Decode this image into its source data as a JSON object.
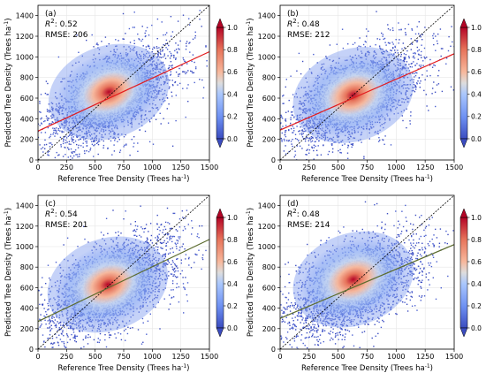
{
  "chart_data": [
    {
      "type": "scatter",
      "panel_label": "(a)",
      "r2_label": "R",
      "r2_sup": "2",
      "r2_value": ": 0.52",
      "rmse_text": "RMSE: 206",
      "xlabel": "Reference Tree Density (Trees ha",
      "ylabel": "Predicted Tree Density (Trees ha",
      "unit_sup": "-1",
      "unit_close": ")",
      "xlim": [
        0,
        1500
      ],
      "ylim": [
        0,
        1500
      ],
      "xticks": [
        0,
        250,
        500,
        750,
        1000,
        1250,
        1500
      ],
      "yticks": [
        0,
        200,
        400,
        600,
        800,
        1000,
        1200,
        1400
      ],
      "one_to_one_line": [
        [
          0,
          0
        ],
        [
          1500,
          1500
        ]
      ],
      "fit_line": [
        [
          0,
          280
        ],
        [
          1500,
          1050
        ]
      ],
      "fit_color": "#e31a1c",
      "density_peak": [
        620,
        660
      ],
      "colorbar": {
        "ticks": [
          0.0,
          0.2,
          0.4,
          0.6,
          0.8,
          1.0
        ],
        "tick_labels": [
          "0.0",
          "0.2",
          "0.4",
          "0.6",
          "0.8",
          "1.0"
        ],
        "colormap": "coolwarm",
        "extend": "both"
      }
    },
    {
      "type": "scatter",
      "panel_label": "(b)",
      "r2_label": "R",
      "r2_sup": "2",
      "r2_value": ": 0.48",
      "rmse_text": "RMSE: 212",
      "xlabel": "Reference Tree Density (Trees ha",
      "ylabel": "Predicted Tree Density (Trees ha",
      "unit_sup": "-1",
      "unit_close": ")",
      "xlim": [
        0,
        1500
      ],
      "ylim": [
        0,
        1500
      ],
      "xticks": [
        0,
        250,
        500,
        750,
        1000,
        1250,
        1500
      ],
      "yticks": [
        0,
        200,
        400,
        600,
        800,
        1000,
        1200,
        1400
      ],
      "one_to_one_line": [
        [
          0,
          0
        ],
        [
          1500,
          1500
        ]
      ],
      "fit_line": [
        [
          0,
          290
        ],
        [
          1500,
          1030
        ]
      ],
      "fit_color": "#e31a1c",
      "density_peak": [
        630,
        630
      ],
      "colorbar": {
        "ticks": [
          0.0,
          0.2,
          0.4,
          0.6,
          0.8,
          1.0
        ],
        "tick_labels": [
          "0.0",
          "0.2",
          "0.4",
          "0.6",
          "0.8",
          "1.0"
        ],
        "colormap": "coolwarm",
        "extend": "both"
      }
    },
    {
      "type": "scatter",
      "panel_label": "(c)",
      "r2_label": "R",
      "r2_sup": "2",
      "r2_value": ": 0.54",
      "rmse_text": "RMSE: 201",
      "xlabel": "Reference Tree Density (Trees ha",
      "ylabel": "Predicted Tree Density (Trees ha",
      "unit_sup": "-1",
      "unit_close": ")",
      "xlim": [
        0,
        1500
      ],
      "ylim": [
        0,
        1500
      ],
      "xticks": [
        0,
        250,
        500,
        750,
        1000,
        1250,
        1500
      ],
      "yticks": [
        0,
        200,
        400,
        600,
        800,
        1000,
        1200,
        1400
      ],
      "one_to_one_line": [
        [
          0,
          0
        ],
        [
          1500,
          1500
        ]
      ],
      "fit_line": [
        [
          0,
          270
        ],
        [
          1500,
          1070
        ]
      ],
      "fit_color": "#5b6b2d",
      "density_peak": [
        610,
        630
      ],
      "colorbar": {
        "ticks": [
          0.0,
          0.2,
          0.4,
          0.6,
          0.8,
          1.0
        ],
        "tick_labels": [
          "0.0",
          "0.2",
          "0.4",
          "0.6",
          "0.8",
          "1.0"
        ],
        "colormap": "coolwarm",
        "extend": "both"
      }
    },
    {
      "type": "scatter",
      "panel_label": "(d)",
      "r2_label": "R",
      "r2_sup": "2",
      "r2_value": ": 0.48",
      "rmse_text": "RMSE: 214",
      "xlabel": "Reference Tree Density (Trees ha",
      "ylabel": "Predicted Tree Density (Trees ha",
      "unit_sup": "-1",
      "unit_close": ")",
      "xlim": [
        0,
        1500
      ],
      "ylim": [
        0,
        1500
      ],
      "xticks": [
        0,
        250,
        500,
        750,
        1000,
        1250,
        1500
      ],
      "yticks": [
        0,
        200,
        400,
        600,
        800,
        1000,
        1200,
        1400
      ],
      "one_to_one_line": [
        [
          0,
          0
        ],
        [
          1500,
          1500
        ]
      ],
      "fit_line": [
        [
          0,
          300
        ],
        [
          1500,
          1020
        ]
      ],
      "fit_color": "#5b6b2d",
      "density_peak": [
        630,
        680
      ],
      "colorbar": {
        "ticks": [
          0.0,
          0.2,
          0.4,
          0.6,
          0.8,
          1.0
        ],
        "tick_labels": [
          "0.0",
          "0.2",
          "0.4",
          "0.6",
          "0.8",
          "1.0"
        ],
        "colormap": "coolwarm",
        "extend": "both"
      }
    }
  ]
}
